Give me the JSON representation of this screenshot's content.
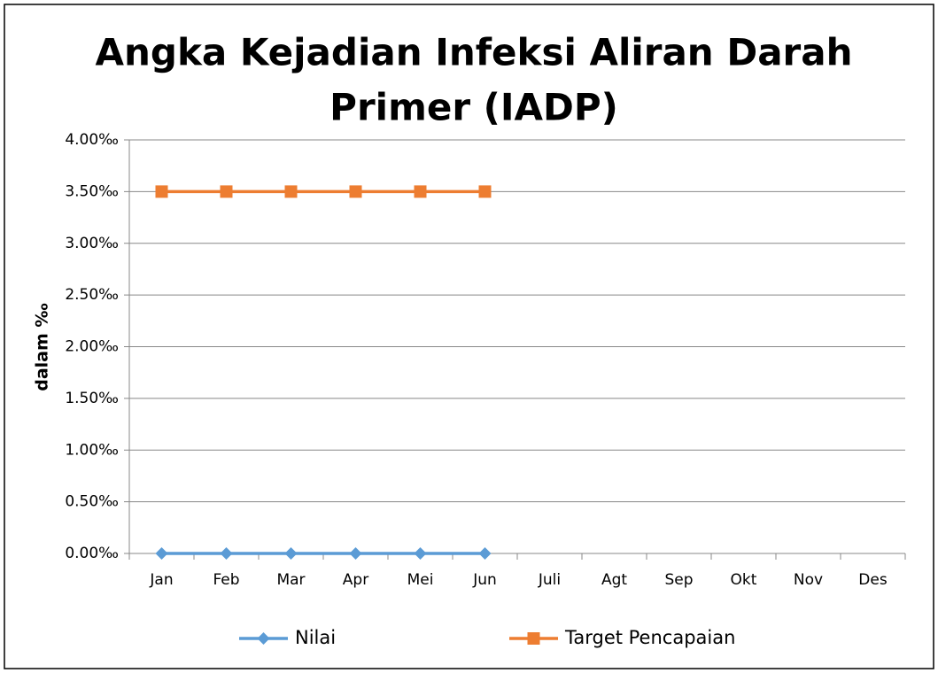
{
  "chart_data": {
    "type": "line",
    "title": [
      "Angka Kejadian Infeksi Aliran Darah",
      "Primer (IADP)"
    ],
    "ylabel": "dalam ‰",
    "categories": [
      "Jan",
      "Feb",
      "Mar",
      "Apr",
      "Mei",
      "Jun",
      "Juli",
      "Agt",
      "Sep",
      "Okt",
      "Nov",
      "Des"
    ],
    "series": [
      {
        "name": "Nilai",
        "color": "#5b9bd5",
        "marker": "diamond",
        "values": [
          0,
          0,
          0,
          0,
          0,
          0,
          null,
          null,
          null,
          null,
          null,
          null
        ]
      },
      {
        "name": "Target Pencapaian",
        "color": "#ed7d31",
        "marker": "square",
        "values": [
          3.5,
          3.5,
          3.5,
          3.5,
          3.5,
          3.5,
          null,
          null,
          null,
          null,
          null,
          null
        ]
      }
    ],
    "ylim": [
      0,
      4
    ],
    "yticks": [
      {
        "value": 0,
        "label": "0.00‰"
      },
      {
        "value": 0.5,
        "label": "0.50‰"
      },
      {
        "value": 1,
        "label": "1.00‰"
      },
      {
        "value": 1.5,
        "label": "1.50‰"
      },
      {
        "value": 2,
        "label": "2.00‰"
      },
      {
        "value": 2.5,
        "label": "2.50‰"
      },
      {
        "value": 3,
        "label": "3.00‰"
      },
      {
        "value": 3.5,
        "label": "3.50‰"
      },
      {
        "value": 4,
        "label": "4.00‰"
      }
    ],
    "grid": true,
    "legend": "bottom"
  }
}
